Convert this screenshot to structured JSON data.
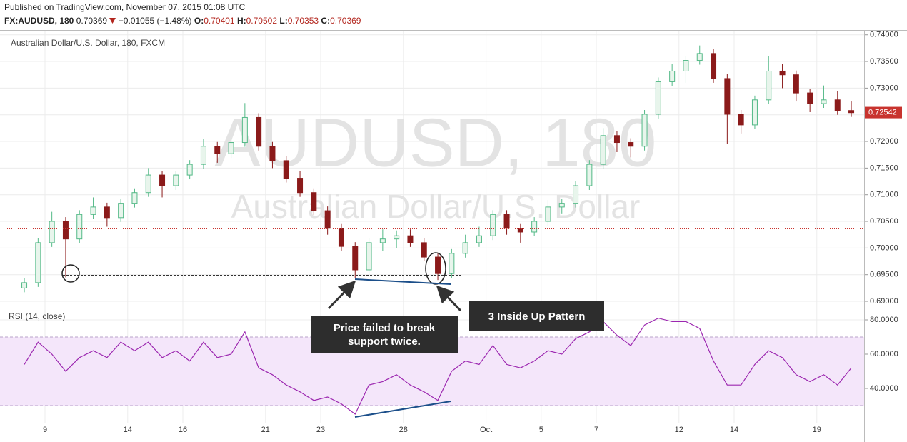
{
  "header": {
    "published": "Published on TradingView.com, November 07, 2015 01:08 UTC",
    "symbol": "FX:AUDUSD, 180",
    "last": "0.70369",
    "change": "−0.01055 (−1.48%)",
    "o_label": "O:",
    "o": "0.70401",
    "h_label": "H:",
    "h": "0.70502",
    "l_label": "L:",
    "l": "0.70353",
    "c_label": "C:",
    "c": "0.70369"
  },
  "chart_data": [
    {
      "type": "candlestick",
      "title": "Australian Dollar/U.S. Dollar, 180, FXCM",
      "watermark": "AUDUSD, 180",
      "watermark_subtitle": "Australian Dollar/U.S. Dollar",
      "categories": [
        null,
        null,
        "9",
        null,
        null,
        null,
        null,
        null,
        "14",
        null,
        null,
        null,
        "16",
        null,
        null,
        null,
        null,
        null,
        "21",
        null,
        null,
        null,
        "23",
        null,
        null,
        null,
        null,
        null,
        "28",
        null,
        null,
        null,
        null,
        null,
        "Oct",
        null,
        null,
        null,
        "5",
        null,
        null,
        null,
        "7",
        null,
        null,
        null,
        null,
        null,
        "12",
        null,
        null,
        null,
        "14",
        null,
        null,
        null,
        null,
        null,
        "19",
        null,
        null
      ],
      "open": [
        0.6925,
        0.6935,
        0.701,
        0.705,
        0.7017,
        0.7063,
        0.7077,
        0.7057,
        0.7084,
        0.7104,
        0.7137,
        0.7117,
        0.7137,
        0.7157,
        0.7191,
        0.7177,
        0.7198,
        0.7245,
        0.7191,
        0.7164,
        0.7131,
        0.7104,
        0.707,
        0.7037,
        0.7003,
        0.6959,
        0.701,
        0.7017,
        0.7023,
        0.701,
        0.6983,
        0.6952,
        0.699,
        0.701,
        0.7023,
        0.7063,
        0.7037,
        0.703,
        0.705,
        0.7077,
        0.7084,
        0.7117,
        0.7157,
        0.7211,
        0.7198,
        0.7191,
        0.7251,
        0.7312,
        0.7332,
        0.7352,
        0.7365,
        0.7318,
        0.7251,
        0.7231,
        0.7278,
        0.7332,
        0.7325,
        0.7291,
        0.7271,
        0.7278,
        0.7258
      ],
      "high": [
        0.6943,
        0.7018,
        0.7068,
        0.7058,
        0.7071,
        0.7095,
        0.7085,
        0.7092,
        0.7112,
        0.715,
        0.7145,
        0.7145,
        0.7165,
        0.7205,
        0.7199,
        0.7206,
        0.7272,
        0.7253,
        0.7199,
        0.7172,
        0.7145,
        0.7112,
        0.7078,
        0.7045,
        0.7011,
        0.7018,
        0.7035,
        0.7033,
        0.7035,
        0.7018,
        0.6991,
        0.6998,
        0.7025,
        0.704,
        0.7071,
        0.7071,
        0.7045,
        0.7058,
        0.709,
        0.7092,
        0.7125,
        0.7165,
        0.7225,
        0.7219,
        0.7206,
        0.7259,
        0.732,
        0.7345,
        0.736,
        0.738,
        0.7373,
        0.7326,
        0.7259,
        0.7286,
        0.736,
        0.7345,
        0.7333,
        0.7299,
        0.7305,
        0.7295,
        0.7275
      ],
      "low": [
        0.6917,
        0.6927,
        0.7002,
        0.6945,
        0.7009,
        0.7055,
        0.704,
        0.7049,
        0.7076,
        0.7096,
        0.7095,
        0.7109,
        0.7129,
        0.7149,
        0.716,
        0.7169,
        0.719,
        0.7183,
        0.715,
        0.7123,
        0.7096,
        0.7062,
        0.7025,
        0.6995,
        0.6944,
        0.6951,
        0.6995,
        0.7,
        0.7002,
        0.6975,
        0.694,
        0.6944,
        0.6982,
        0.7002,
        0.7015,
        0.7025,
        0.701,
        0.7022,
        0.7042,
        0.7065,
        0.7076,
        0.7109,
        0.7149,
        0.718,
        0.717,
        0.7183,
        0.7243,
        0.7304,
        0.731,
        0.7344,
        0.731,
        0.7195,
        0.7215,
        0.7223,
        0.727,
        0.73,
        0.7275,
        0.7255,
        0.7263,
        0.725,
        0.7246
      ],
      "close": [
        0.6935,
        0.701,
        0.705,
        0.7017,
        0.7063,
        0.7077,
        0.7057,
        0.7084,
        0.7104,
        0.7137,
        0.7117,
        0.7137,
        0.7157,
        0.7191,
        0.7177,
        0.7198,
        0.7245,
        0.7191,
        0.7164,
        0.7131,
        0.7104,
        0.707,
        0.7037,
        0.7003,
        0.6959,
        0.701,
        0.7017,
        0.7023,
        0.701,
        0.6983,
        0.6952,
        0.699,
        0.701,
        0.7023,
        0.7063,
        0.7037,
        0.703,
        0.705,
        0.7077,
        0.7084,
        0.7117,
        0.7157,
        0.7211,
        0.7198,
        0.7191,
        0.7251,
        0.7312,
        0.7332,
        0.7352,
        0.7365,
        0.7318,
        0.7251,
        0.7231,
        0.7278,
        0.7332,
        0.7325,
        0.7291,
        0.7271,
        0.7278,
        0.7258,
        0.7254
      ],
      "up_color": "#53b987",
      "down_color": "#8b1a1a",
      "last_price": 0.72542,
      "last_price_color": "#c8332e",
      "ylim": [
        0.6892,
        0.7409
      ],
      "yticks": [
        {
          "value": 0.69,
          "label": "0.69000"
        },
        {
          "value": 0.695,
          "label": "0.69500"
        },
        {
          "value": 0.7,
          "label": "0.70000"
        },
        {
          "value": 0.705,
          "label": "0.70500"
        },
        {
          "value": 0.71,
          "label": "0.71000"
        },
        {
          "value": 0.715,
          "label": "0.71500"
        },
        {
          "value": 0.72,
          "label": "0.72000"
        },
        {
          "value": 0.725,
          "label": "0.72500"
        },
        {
          "value": 0.73,
          "label": "0.73000"
        },
        {
          "value": 0.735,
          "label": "0.73500"
        },
        {
          "value": 0.74,
          "label": "0.74000"
        }
      ],
      "grid": true,
      "annotations": [
        "Price failed to break support twice.",
        "3 Inside Up Pattern"
      ]
    },
    {
      "type": "line",
      "title": "RSI (14, close)",
      "color": "#9c27b0",
      "values": [
        54,
        67,
        60,
        50,
        58,
        62,
        58,
        67,
        62,
        67,
        58,
        62,
        56,
        67,
        58,
        60,
        73,
        52,
        48,
        42,
        38,
        33,
        35,
        31,
        25,
        42,
        44,
        48,
        42,
        38,
        33,
        50,
        56,
        54,
        65,
        54,
        52,
        56,
        62,
        60,
        69,
        73,
        79,
        71,
        65,
        77,
        81,
        79,
        79,
        75,
        56,
        42,
        42,
        54,
        62,
        58,
        48,
        44,
        48,
        42,
        52
      ],
      "ylim": [
        20,
        87.5
      ],
      "yticks": [
        {
          "value": 40,
          "label": "40.0000"
        },
        {
          "value": 60,
          "label": "60.0000"
        },
        {
          "value": 80,
          "label": "80.0000"
        }
      ],
      "bands": [
        30,
        70
      ],
      "band_color": "#f4e6fa",
      "grid": true
    }
  ]
}
